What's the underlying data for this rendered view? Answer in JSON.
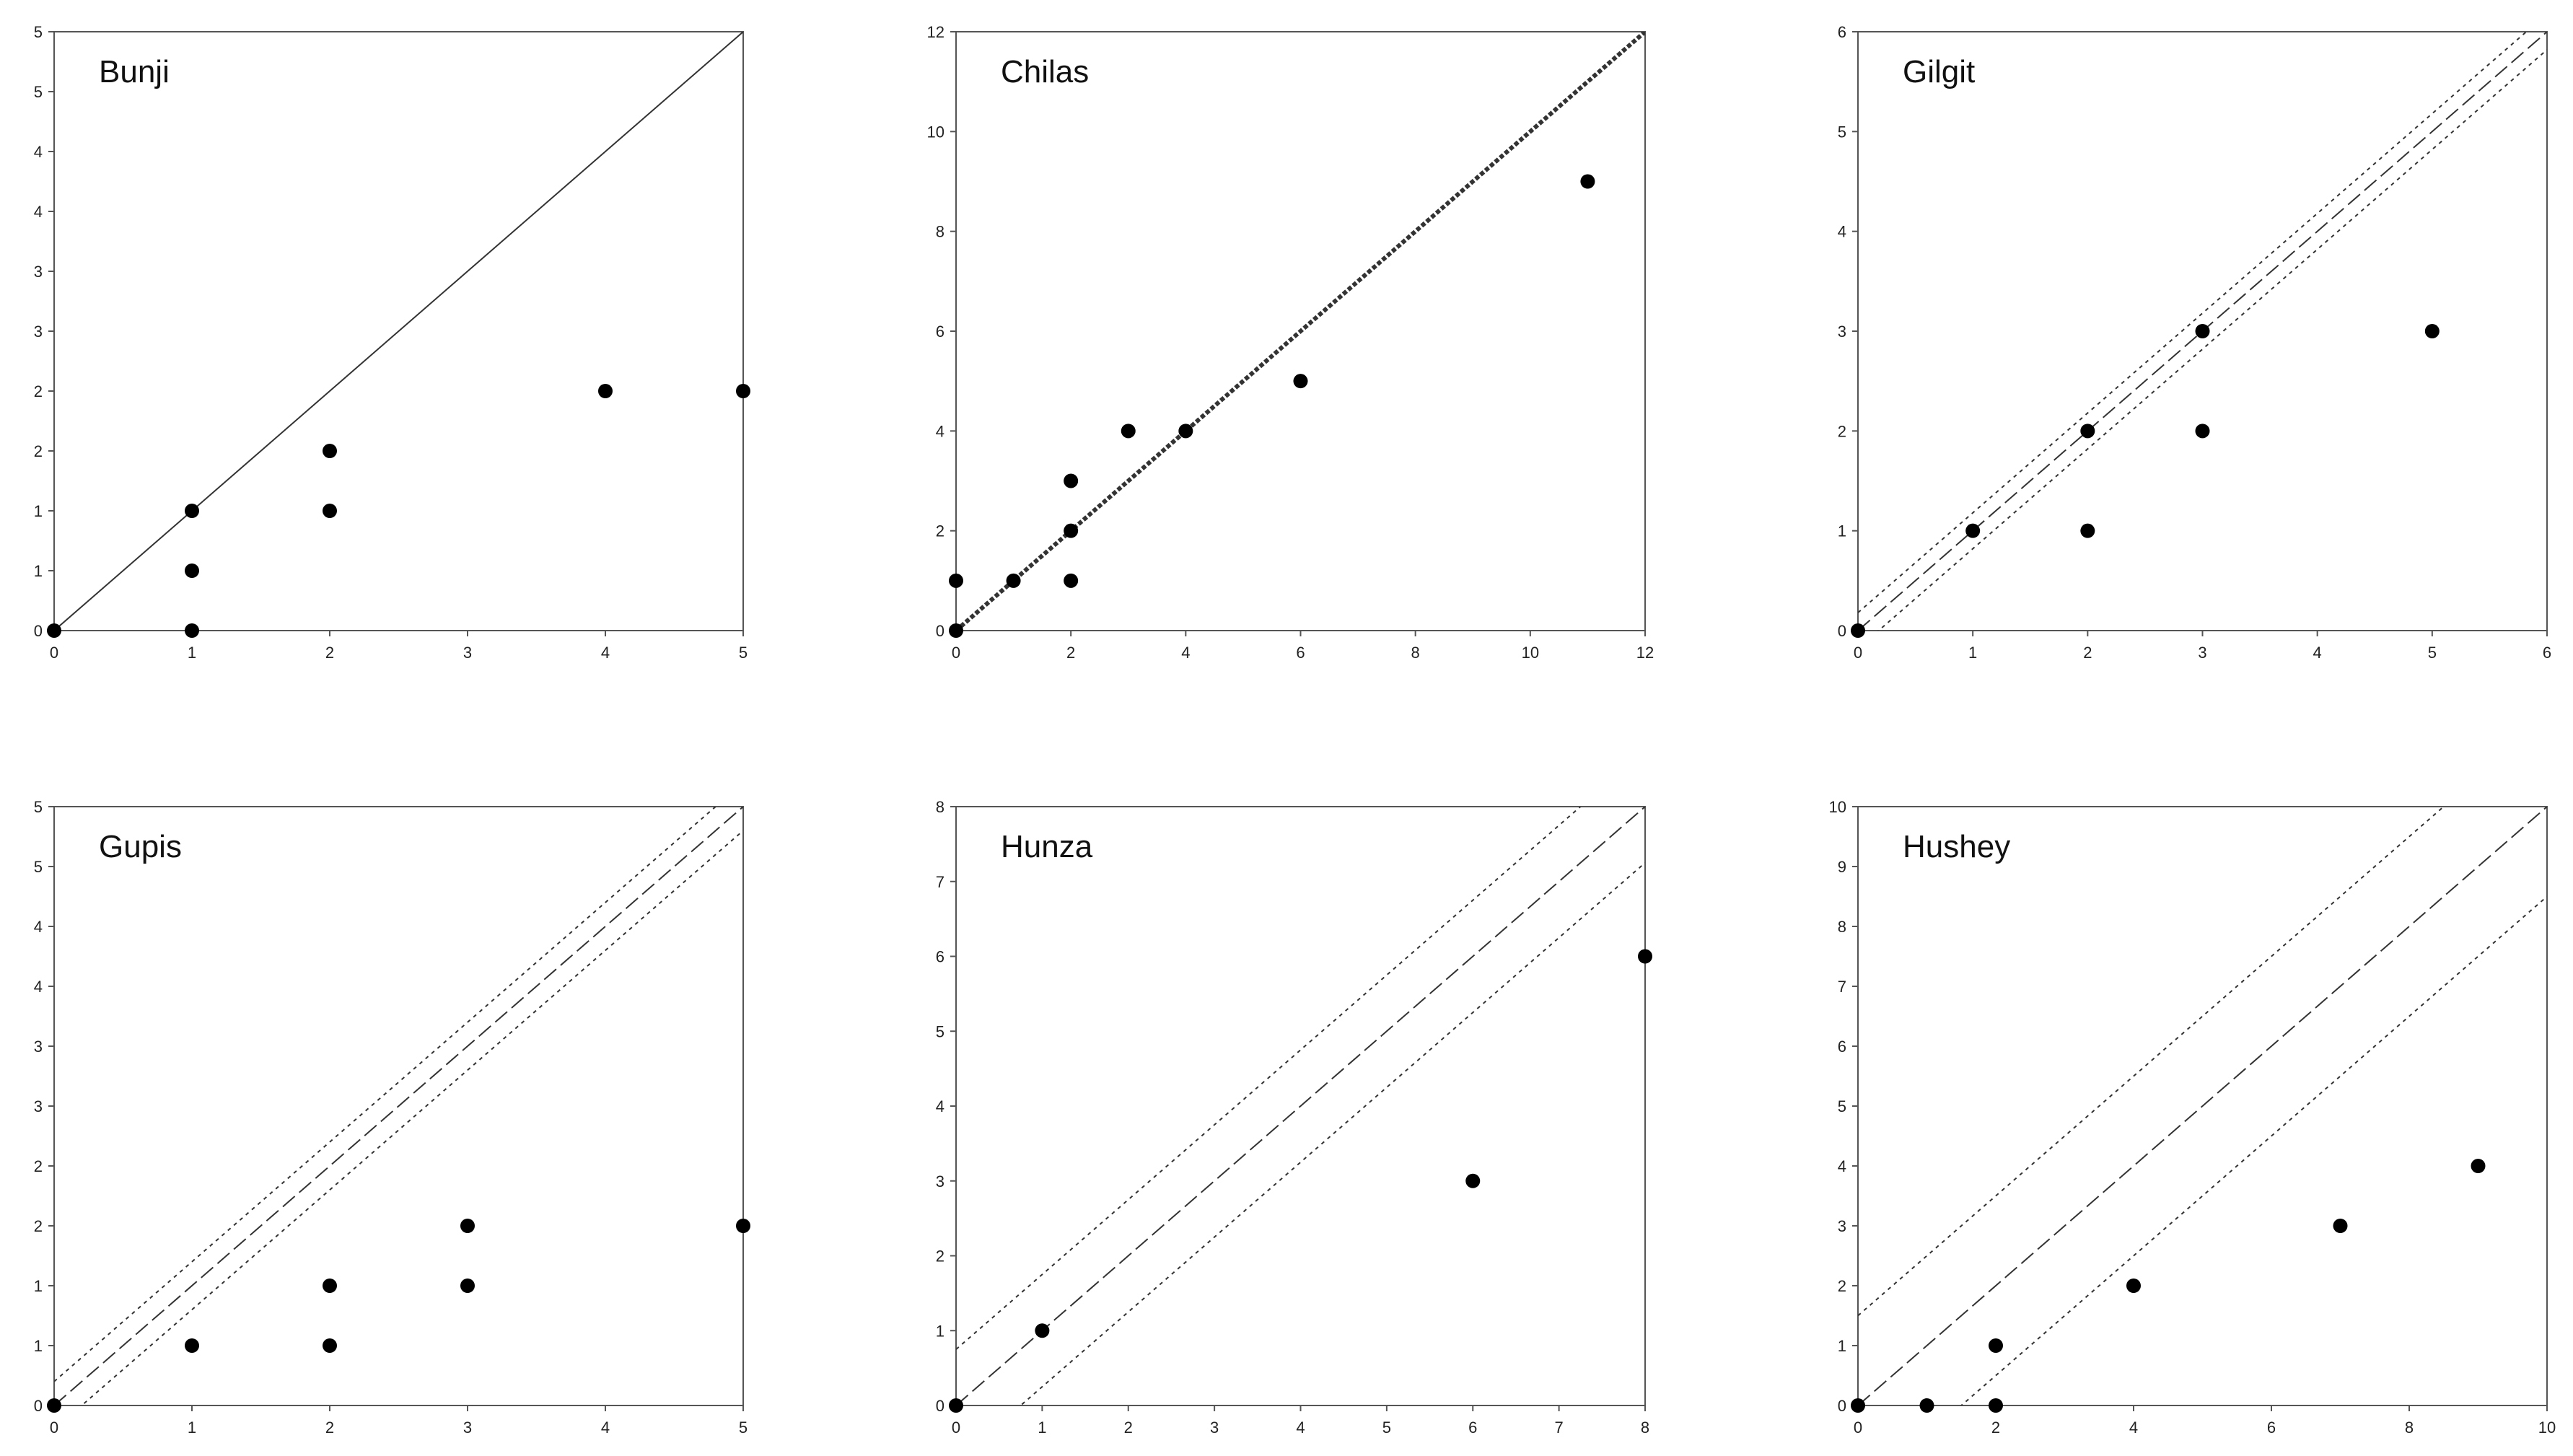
{
  "chart_data": [
    {
      "type": "scatter",
      "title": "Bunji",
      "xlim": [
        0,
        5
      ],
      "x_ticks": [
        "0",
        "1",
        "2",
        "3",
        "4",
        "5"
      ],
      "y_ticks": [
        "0",
        "1",
        "1",
        "2",
        "2",
        "3",
        "3",
        "4",
        "4",
        "5",
        "5"
      ],
      "ylim": [
        0,
        5
      ],
      "y_tick_step": 0.5,
      "points": [
        [
          0,
          0
        ],
        [
          1,
          0
        ],
        [
          1,
          0.5
        ],
        [
          1,
          1
        ],
        [
          2,
          1
        ],
        [
          2,
          1.5
        ],
        [
          4,
          2
        ],
        [
          5,
          2
        ]
      ],
      "lines": [
        {
          "style": "solid",
          "offset": 0
        }
      ]
    },
    {
      "type": "scatter",
      "title": "Chilas",
      "xlim": [
        0,
        12
      ],
      "x_ticks": [
        "0",
        "2",
        "4",
        "6",
        "8",
        "10",
        "12"
      ],
      "ylim": [
        0,
        12
      ],
      "y_ticks": [
        "0",
        "2",
        "4",
        "6",
        "8",
        "10",
        "12"
      ],
      "y_tick_step": 2,
      "points": [
        [
          0,
          0
        ],
        [
          0,
          1
        ],
        [
          1,
          1
        ],
        [
          2,
          1
        ],
        [
          2,
          2
        ],
        [
          2,
          3
        ],
        [
          3,
          4
        ],
        [
          4,
          4
        ],
        [
          6,
          5
        ],
        [
          11,
          9
        ]
      ],
      "lines": [
        {
          "style": "thick-dotted",
          "offset": 0
        }
      ]
    },
    {
      "type": "scatter",
      "title": "Gilgit",
      "xlim": [
        0,
        6
      ],
      "x_ticks": [
        "0",
        "1",
        "2",
        "3",
        "4",
        "5",
        "6"
      ],
      "ylim": [
        0,
        6
      ],
      "y_ticks": [
        "0",
        "1",
        "2",
        "3",
        "4",
        "5",
        "6"
      ],
      "y_tick_step": 1,
      "points": [
        [
          0,
          0
        ],
        [
          1,
          1
        ],
        [
          2,
          1
        ],
        [
          2,
          2
        ],
        [
          3,
          2
        ],
        [
          3,
          3
        ],
        [
          5,
          3
        ]
      ],
      "lines": [
        {
          "style": "dashed",
          "offset": 0
        },
        {
          "style": "dotted",
          "offset": 0.18
        },
        {
          "style": "dotted",
          "offset": -0.18
        }
      ]
    },
    {
      "type": "scatter",
      "title": "Gupis",
      "xlim": [
        0,
        5
      ],
      "x_ticks": [
        "0",
        "1",
        "2",
        "3",
        "4",
        "5"
      ],
      "ylim": [
        0,
        5
      ],
      "y_ticks": [
        "0",
        "1",
        "1",
        "2",
        "2",
        "3",
        "3",
        "4",
        "4",
        "5",
        "5"
      ],
      "y_tick_step": 0.5,
      "points": [
        [
          0,
          0
        ],
        [
          1,
          0.5
        ],
        [
          2,
          0.5
        ],
        [
          2,
          1
        ],
        [
          3,
          1
        ],
        [
          3,
          1.5
        ],
        [
          5,
          1.5
        ]
      ],
      "lines": [
        {
          "style": "dashed",
          "offset": 0
        },
        {
          "style": "dotted",
          "offset": 0.2
        },
        {
          "style": "dotted",
          "offset": -0.2
        }
      ]
    },
    {
      "type": "scatter",
      "title": "Hunza",
      "xlim": [
        0,
        8
      ],
      "x_ticks": [
        "0",
        "1",
        "2",
        "3",
        "4",
        "5",
        "6",
        "7",
        "8"
      ],
      "ylim": [
        0,
        8
      ],
      "y_ticks": [
        "0",
        "1",
        "2",
        "3",
        "4",
        "5",
        "6",
        "7",
        "8"
      ],
      "y_tick_step": 1,
      "points": [
        [
          0,
          0
        ],
        [
          1,
          1
        ],
        [
          6,
          3
        ],
        [
          8,
          6
        ]
      ],
      "lines": [
        {
          "style": "dashed",
          "offset": 0
        },
        {
          "style": "dotted",
          "offset": 0.75
        },
        {
          "style": "dotted",
          "offset": -0.75
        }
      ]
    },
    {
      "type": "scatter",
      "title": "Hushey",
      "xlim": [
        0,
        10
      ],
      "x_ticks": [
        "0",
        "2",
        "4",
        "6",
        "8",
        "10"
      ],
      "ylim": [
        0,
        10
      ],
      "y_ticks": [
        "0",
        "1",
        "2",
        "3",
        "4",
        "5",
        "6",
        "7",
        "8",
        "9",
        "10"
      ],
      "y_tick_step": 1,
      "points": [
        [
          0,
          0
        ],
        [
          1,
          0
        ],
        [
          2,
          0
        ],
        [
          2,
          1
        ],
        [
          4,
          2
        ],
        [
          7,
          3
        ],
        [
          9,
          4
        ]
      ],
      "lines": [
        {
          "style": "dashed",
          "offset": 0
        },
        {
          "style": "dotted",
          "offset": 1.5
        },
        {
          "style": "dotted",
          "offset": -1.5
        }
      ]
    }
  ]
}
